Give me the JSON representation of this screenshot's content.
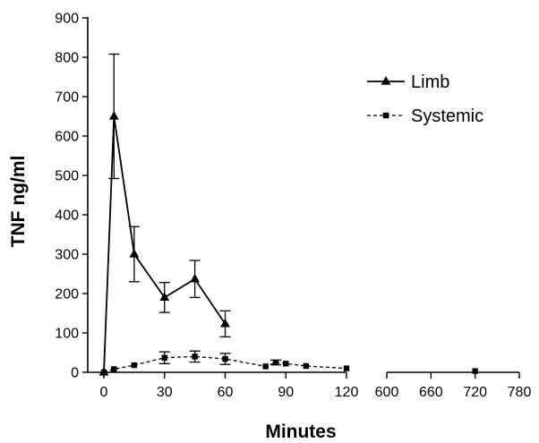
{
  "chart_data": {
    "type": "line",
    "xlabel": "Minutes",
    "ylabel": "TNF ng/ml",
    "ylim": [
      0,
      900
    ],
    "y_ticks": [
      0,
      100,
      200,
      300,
      400,
      500,
      600,
      700,
      800,
      900
    ],
    "x_segments": [
      {
        "range": [
          0,
          120
        ],
        "ticks": [
          0,
          30,
          60,
          90,
          120
        ]
      },
      {
        "range": [
          600,
          780
        ],
        "ticks": [
          600,
          660,
          720,
          780
        ]
      }
    ],
    "legend_position": "top-right",
    "grid": false,
    "series": [
      {
        "name": "Limb",
        "marker": "triangle",
        "line_style": "solid",
        "points": [
          {
            "x": 0,
            "y": 0
          },
          {
            "x": 5,
            "y": 650,
            "err": 158
          },
          {
            "x": 15,
            "y": 300,
            "err": 70
          },
          {
            "x": 30,
            "y": 190,
            "err": 38
          },
          {
            "x": 45,
            "y": 237,
            "err": 47
          },
          {
            "x": 60,
            "y": 123,
            "err": 33
          }
        ]
      },
      {
        "name": "Systemic",
        "marker": "square",
        "line_style": "dashed",
        "points": [
          {
            "x": 0,
            "y": 0
          },
          {
            "x": 5,
            "y": 8
          },
          {
            "x": 15,
            "y": 18
          },
          {
            "x": 30,
            "y": 37,
            "err": 15
          },
          {
            "x": 45,
            "y": 40,
            "err": 14
          },
          {
            "x": 60,
            "y": 34,
            "err": 14
          },
          {
            "x": 80,
            "y": 15
          },
          {
            "x": 85,
            "y": 25,
            "err": 6
          },
          {
            "x": 90,
            "y": 22
          },
          {
            "x": 100,
            "y": 16
          },
          {
            "x": 120,
            "y": 10
          },
          {
            "x": 720,
            "y": 3
          }
        ]
      }
    ]
  }
}
